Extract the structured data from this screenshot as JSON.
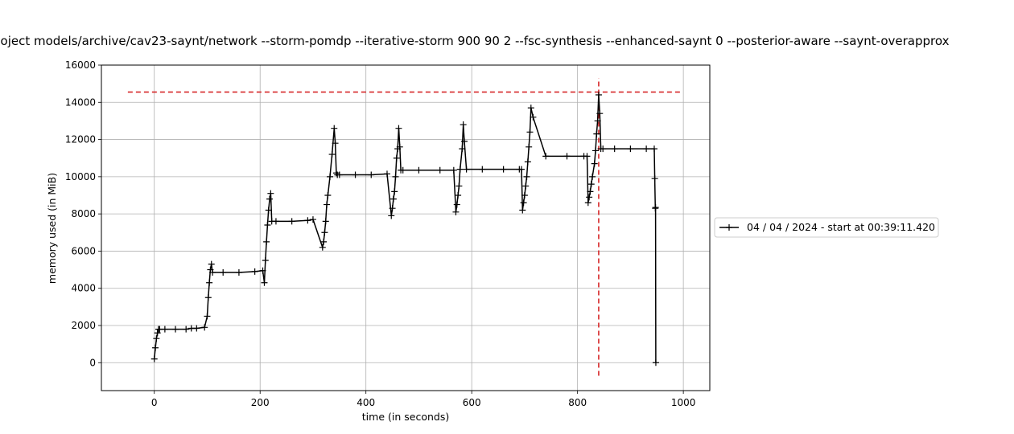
{
  "chart_data": {
    "type": "line",
    "title": "oject models/archive/cav23-saynt/network --storm-pomdp --iterative-storm 900 90 2 --fsc-synthesis --enhanced-saynt 0 --posterior-aware --saynt-overapprox",
    "xlabel": "time (in seconds)",
    "ylabel": "memory used (in MiB)",
    "xlim": [
      -100,
      1050
    ],
    "ylim": [
      -1500,
      16000
    ],
    "xticks": [
      0,
      200,
      400,
      600,
      800,
      1000
    ],
    "yticks": [
      0,
      2000,
      4000,
      6000,
      8000,
      10000,
      12000,
      14000,
      16000
    ],
    "grid": true,
    "legend_position": "right, outside plot",
    "series": [
      {
        "name": "04 / 04 / 2024 - start at 00:39:11.420",
        "color": "#000000",
        "marker": "+",
        "x": [
          0,
          2,
          4,
          6,
          8,
          10,
          20,
          40,
          60,
          70,
          80,
          95,
          100,
          102,
          104,
          106,
          108,
          110,
          130,
          160,
          190,
          205,
          208,
          210,
          212,
          214,
          216,
          218,
          220,
          222,
          230,
          260,
          290,
          300,
          318,
          320,
          322,
          324,
          326,
          328,
          332,
          336,
          340,
          342,
          344,
          346,
          350,
          380,
          410,
          440,
          448,
          450,
          452,
          454,
          456,
          458,
          460,
          462,
          464,
          466,
          470,
          500,
          540,
          566,
          570,
          572,
          574,
          576,
          578,
          582,
          584,
          586,
          590,
          620,
          660,
          690,
          694,
          696,
          698,
          700,
          702,
          704,
          706,
          708,
          710,
          712,
          716,
          740,
          780,
          812,
          818,
          820,
          822,
          824,
          826,
          828,
          832,
          834,
          836,
          838,
          840,
          842,
          844,
          848,
          870,
          900,
          930,
          945,
          946,
          947,
          947.5,
          948
        ],
        "y": [
          200,
          800,
          1300,
          1600,
          1800,
          1800,
          1800,
          1800,
          1800,
          1850,
          1850,
          1900,
          2500,
          3500,
          4300,
          5000,
          5300,
          4850,
          4850,
          4850,
          4900,
          4950,
          4300,
          5500,
          6500,
          7400,
          8200,
          8800,
          9100,
          7600,
          7600,
          7600,
          7650,
          7700,
          6200,
          6500,
          7000,
          7600,
          8500,
          9000,
          10000,
          11200,
          12600,
          11800,
          10200,
          10100,
          10100,
          10100,
          10100,
          10150,
          7900,
          8300,
          8800,
          9200,
          10000,
          11000,
          11500,
          12600,
          11600,
          10350,
          10350,
          10350,
          10350,
          10350,
          8100,
          8500,
          9000,
          9500,
          10400,
          11500,
          12800,
          11900,
          10400,
          10400,
          10400,
          10400,
          10400,
          8200,
          8600,
          9000,
          9500,
          10000,
          10800,
          11600,
          12400,
          13700,
          13200,
          11100,
          11100,
          11100,
          11100,
          8600,
          8900,
          9200,
          9600,
          10000,
          10700,
          11400,
          12300,
          13000,
          14400,
          13400,
          11500,
          11500,
          11500,
          11500,
          11500,
          11500,
          9900,
          8300,
          8350,
          0
        ]
      }
    ],
    "annotations": {
      "hline_y": 14550,
      "hline_x_range": [
        -50,
        995
      ],
      "vline_x": 840,
      "vline_y_range": [
        -700,
        15300
      ],
      "annotation_color": "#d62728"
    }
  }
}
